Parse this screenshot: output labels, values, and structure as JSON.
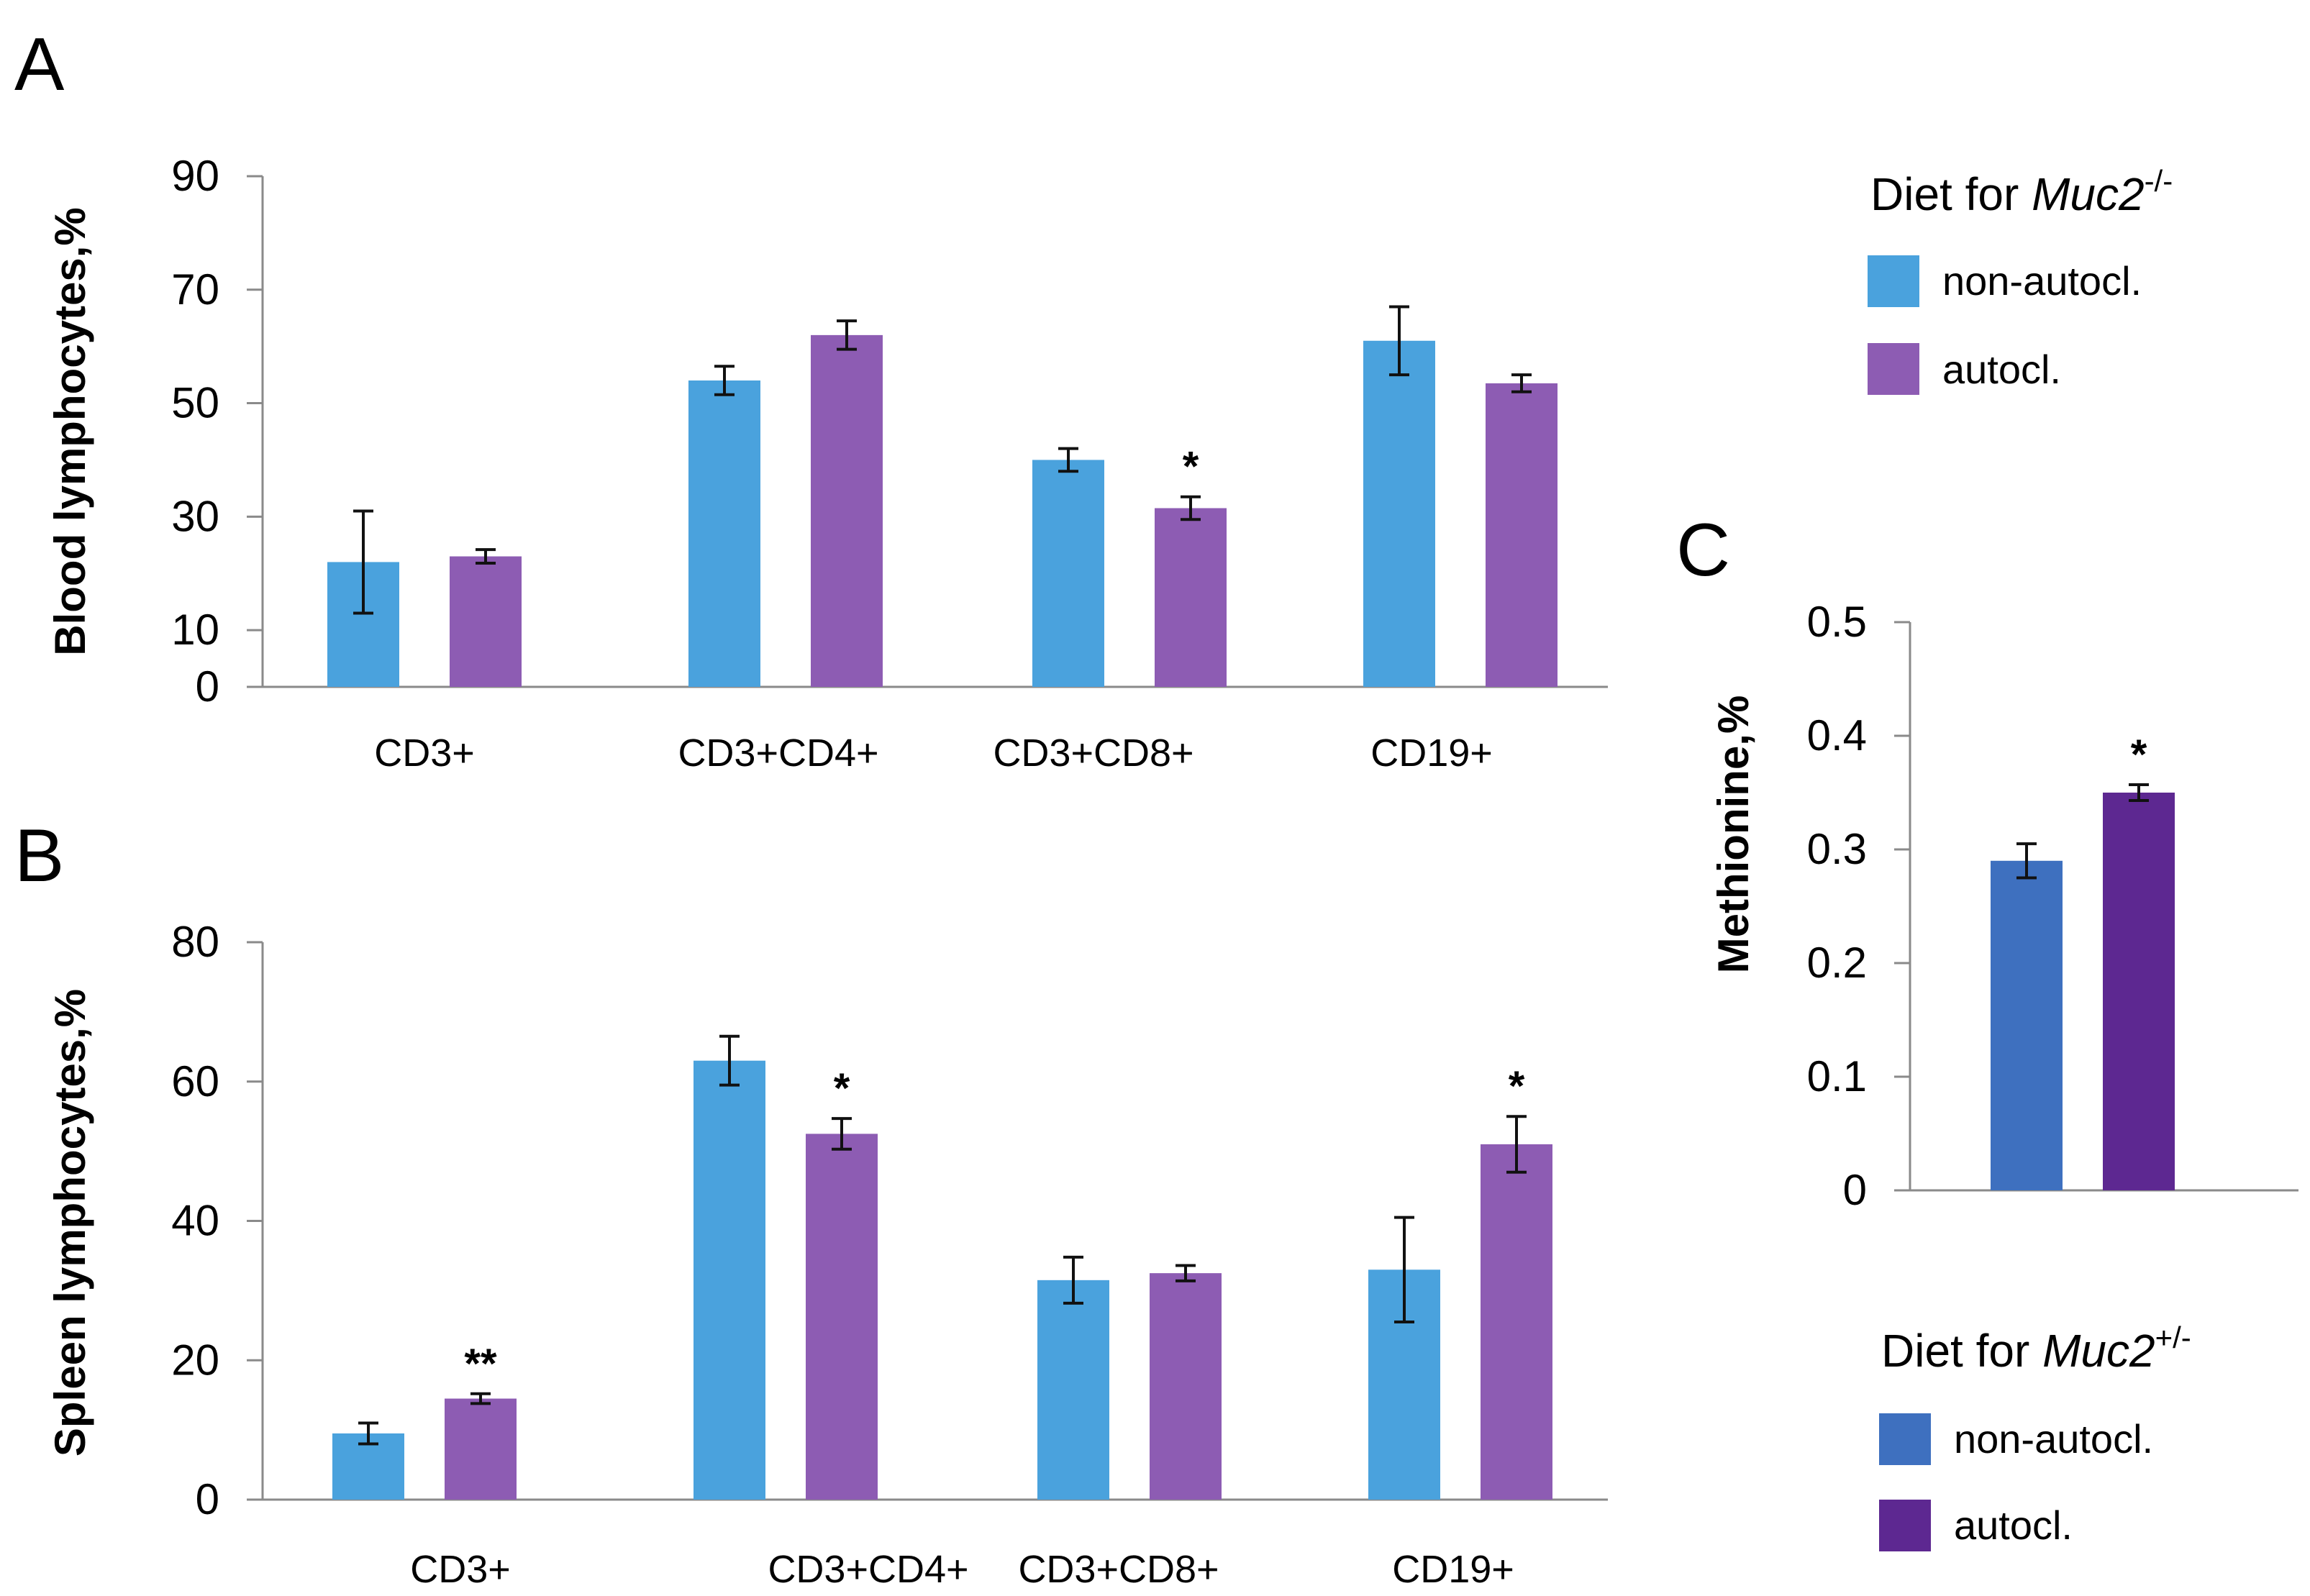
{
  "colors": {
    "light_blue": "#4aa2dd",
    "light_purple": "#8d5cb3",
    "dark_blue": "#3e70bf",
    "dark_purple": "#5d2891"
  },
  "panel_labels": {
    "A": "A",
    "B": "B",
    "C": "C"
  },
  "legend_top": {
    "title_prefix": "Diet for ",
    "title_italic": "Muc2",
    "title_sup": "-/-",
    "items": [
      {
        "label": "non-autocl.",
        "color": "#4aa2dd"
      },
      {
        "label": "autocl.",
        "color": "#8d5cb3"
      }
    ]
  },
  "legend_bottom": {
    "title_prefix": "Diet for ",
    "title_italic": "Muc2",
    "title_sup": "+/-",
    "items": [
      {
        "label": "non-autocl.",
        "color": "#3e70bf"
      },
      {
        "label": "autocl.",
        "color": "#5d2891"
      }
    ]
  },
  "chart_data": [
    {
      "id": "A",
      "type": "bar",
      "title": "",
      "ylabel": "Blood lymphocytes,%",
      "xlabel": "",
      "ylim": [
        0,
        90
      ],
      "yticks": [
        0,
        10,
        30,
        50,
        70,
        90
      ],
      "categories": [
        "CD3+",
        "CD3+CD4+",
        "CD3+CD8+",
        "CD19+"
      ],
      "series": [
        {
          "name": "non-autocl.",
          "values": [
            22,
            54,
            40,
            61
          ],
          "errors": [
            9,
            2.5,
            2,
            6
          ]
        },
        {
          "name": "autocl.",
          "values": [
            23,
            62,
            31.5,
            53.5
          ],
          "errors": [
            1.2,
            2.5,
            2,
            1.5
          ]
        }
      ],
      "annotations": [
        {
          "category": "CD3+CD8+",
          "series": "autocl.",
          "text": "*"
        }
      ]
    },
    {
      "id": "B",
      "type": "bar",
      "title": "",
      "ylabel": "Spleen lymphocytes,%",
      "xlabel": "",
      "ylim": [
        0,
        80
      ],
      "yticks": [
        0,
        20,
        40,
        60,
        80
      ],
      "categories": [
        "CD3+",
        "CD3+CD4+",
        "CD3+CD8+",
        "CD19+"
      ],
      "series": [
        {
          "name": "non-autocl.",
          "values": [
            9.5,
            63,
            31.5,
            33
          ],
          "errors": [
            1.5,
            3.5,
            3.3,
            7.5
          ]
        },
        {
          "name": "autocl.",
          "values": [
            14.5,
            52.5,
            32.5,
            51
          ],
          "errors": [
            0.7,
            2.2,
            1.1,
            4
          ]
        }
      ],
      "annotations": [
        {
          "category": "CD3+",
          "series": "autocl.",
          "text": "**"
        },
        {
          "category": "CD3+CD4+",
          "series": "autocl.",
          "text": "*"
        },
        {
          "category": "CD19+",
          "series": "autocl.",
          "text": "*"
        }
      ]
    },
    {
      "id": "C",
      "type": "bar",
      "title": "",
      "ylabel": "Methionine,%",
      "xlabel": "",
      "ylim": [
        0,
        0.5
      ],
      "yticks": [
        "0",
        "0.1",
        "0.2",
        "0.3",
        "0.4",
        "0.5"
      ],
      "categories": [
        ""
      ],
      "series": [
        {
          "name": "non-autocl.",
          "values": [
            0.29
          ],
          "errors": [
            0.015
          ]
        },
        {
          "name": "autocl.",
          "values": [
            0.35
          ],
          "errors": [
            0.007
          ]
        }
      ],
      "annotations": [
        {
          "category": "",
          "series": "autocl.",
          "text": "*"
        }
      ]
    }
  ]
}
